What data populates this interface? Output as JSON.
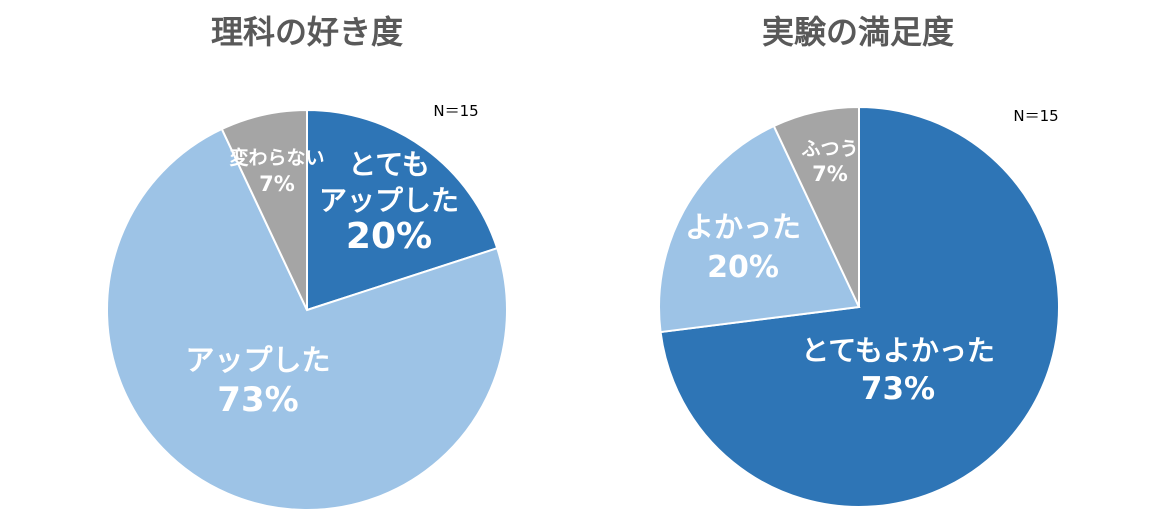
{
  "chart_data": [
    {
      "type": "pie",
      "title": "理科の好き度",
      "note": "N＝15",
      "slices": [
        {
          "label": "とても\nアップした",
          "value": 20,
          "color": "#2E75B6"
        },
        {
          "label": "アップした",
          "value": 73,
          "color": "#9DC3E6"
        },
        {
          "label": "変わらない",
          "value": 7,
          "color": "#A5A5A5"
        }
      ]
    },
    {
      "type": "pie",
      "title": "実験の満足度",
      "note": "N＝15",
      "slices": [
        {
          "label": "とてもよかった",
          "value": 73,
          "color": "#2E75B6"
        },
        {
          "label": "よかった",
          "value": 20,
          "color": "#9DC3E6"
        },
        {
          "label": "ふつう",
          "value": 7,
          "color": "#A5A5A5"
        }
      ]
    }
  ]
}
